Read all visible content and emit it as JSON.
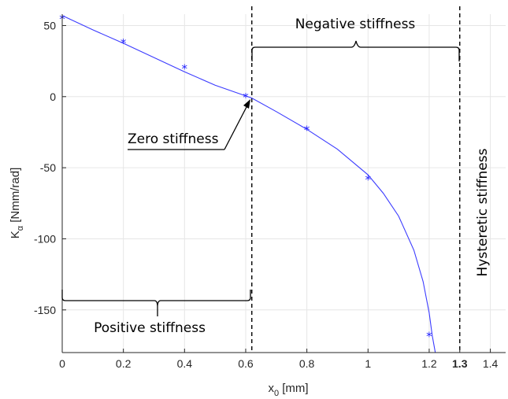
{
  "chart_data": {
    "type": "scatter",
    "xlabel": {
      "base": "x",
      "sub": "0",
      "unit": " [mm]"
    },
    "ylabel": {
      "base": "K",
      "sub": "α",
      "unit": " [Nmm/rad]"
    },
    "xlim": [
      0,
      1.45
    ],
    "ylim": [
      -180,
      58
    ],
    "xticks": [
      "0",
      "0.2",
      "0.4",
      "0.6",
      "0.8",
      "1",
      "1.2",
      "1.3",
      "1.4"
    ],
    "yticks": [
      "50",
      "0",
      "-50",
      "-100",
      "-150"
    ],
    "grid": true,
    "series": [
      {
        "kind": "points",
        "marker": "*",
        "color": "#1f1fff",
        "x": [
          0,
          0.2,
          0.4,
          0.6,
          0.8,
          1.0,
          1.2
        ],
        "y": [
          55,
          38,
          20,
          0,
          -23,
          -58,
          -168
        ]
      },
      {
        "kind": "fit-curve",
        "color": "#3b3bff",
        "x": [
          0,
          0.1,
          0.2,
          0.3,
          0.4,
          0.5,
          0.6,
          0.62,
          0.7,
          0.8,
          0.9,
          1.0,
          1.05,
          1.1,
          1.15,
          1.18,
          1.2,
          1.21,
          1.22
        ],
        "y": [
          57,
          47,
          37.5,
          27.5,
          17.5,
          8,
          0.5,
          -1,
          -10.5,
          -23,
          -37,
          -55,
          -68,
          -84,
          -108,
          -130,
          -152,
          -168,
          -180
        ]
      }
    ],
    "vlines": [
      {
        "x": 0.62,
        "style": "dashed"
      },
      {
        "x": 1.3,
        "style": "dashed"
      }
    ],
    "annotations": {
      "negative": "Negative stiffness",
      "zero": "Zero stiffness",
      "positive": "Positive stiffness",
      "hysteretic": "Hysteretic stiffness"
    },
    "colors": {
      "axis": "#262626",
      "grid": "#e6e6e6",
      "series": "#1f1fff",
      "annotation": "#000000"
    }
  }
}
